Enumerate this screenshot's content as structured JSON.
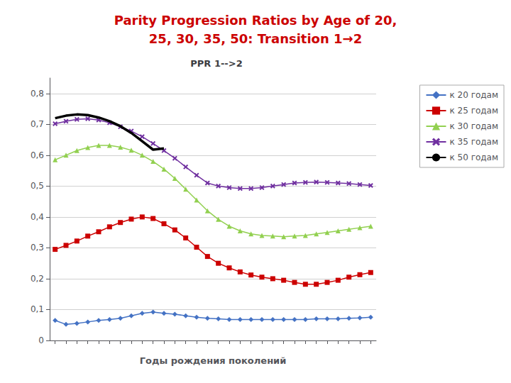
{
  "chart_data": {
    "type": "line",
    "title": "Parity Progression Ratios by Age of 20,\n25, 30, 35, 50: Transition 1→2",
    "subtitle": "PPR 1-->2",
    "xlabel": "Годы рождения поколений",
    "categories": [
      null,
      null,
      null,
      null,
      null,
      null,
      null,
      null,
      null,
      null,
      null,
      null,
      null,
      null,
      null,
      null,
      null,
      null,
      null,
      null,
      null,
      null,
      null,
      null,
      null,
      null,
      null,
      null,
      null,
      null
    ],
    "ylim": [
      0,
      0.85
    ],
    "yticks": [
      0,
      {
        "value": 0.1,
        "label": "0,1"
      },
      {
        "value": 0.2,
        "label": "0,2"
      },
      {
        "value": 0.3,
        "label": "0,3"
      },
      {
        "value": 0.4,
        "label": "0,4"
      },
      {
        "value": 0.5,
        "label": "0,5"
      },
      {
        "value": 0.6,
        "label": "0,6"
      },
      {
        "value": 0.7,
        "label": "0,7"
      },
      {
        "value": 0.8,
        "label": "0,8"
      }
    ],
    "grid": true,
    "legend": "right",
    "tick_labels": "y",
    "series": [
      {
        "name": "к 20 годам",
        "color": "#4472C4",
        "marker": "diamond",
        "values": [
          0.065,
          0.052,
          0.055,
          0.06,
          0.065,
          0.068,
          0.072,
          0.08,
          0.088,
          0.092,
          0.088,
          0.085,
          0.08,
          0.075,
          0.072,
          0.07,
          0.068,
          0.068,
          0.068,
          0.068,
          0.068,
          0.068,
          0.068,
          0.068,
          0.07,
          0.07,
          0.07,
          0.072,
          0.073,
          0.075
        ]
      },
      {
        "name": "к 25 годам",
        "color": "#CC0000",
        "marker": "square",
        "values": [
          0.295,
          0.308,
          0.322,
          0.338,
          0.352,
          0.368,
          0.382,
          0.393,
          0.4,
          0.395,
          0.378,
          0.358,
          0.332,
          0.302,
          0.272,
          0.25,
          0.235,
          0.222,
          0.212,
          0.205,
          0.2,
          0.195,
          0.188,
          0.182,
          0.182,
          0.188,
          0.195,
          0.205,
          0.213,
          0.22
        ]
      },
      {
        "name": "к 30 годам",
        "color": "#92D050",
        "marker": "triangle",
        "values": [
          0.585,
          0.6,
          0.615,
          0.625,
          0.632,
          0.632,
          0.626,
          0.616,
          0.6,
          0.58,
          0.555,
          0.525,
          0.49,
          0.455,
          0.42,
          0.392,
          0.37,
          0.355,
          0.345,
          0.34,
          0.338,
          0.336,
          0.338,
          0.34,
          0.345,
          0.35,
          0.355,
          0.36,
          0.365,
          0.37
        ]
      },
      {
        "name": "к 35 годам",
        "color": "#7030A0",
        "marker": "x",
        "values": [
          0.702,
          0.71,
          0.716,
          0.718,
          0.714,
          0.705,
          0.692,
          0.678,
          0.66,
          0.638,
          0.615,
          0.59,
          0.562,
          0.535,
          0.51,
          0.5,
          0.495,
          0.492,
          0.492,
          0.495,
          0.5,
          0.505,
          0.51,
          0.512,
          0.513,
          0.512,
          0.51,
          0.508,
          0.505,
          0.502
        ]
      },
      {
        "name": "к 50 годам",
        "color": "#000000",
        "marker": "none",
        "values": [
          0.72,
          0.728,
          0.732,
          0.73,
          0.722,
          0.71,
          0.694,
          0.672,
          0.645,
          0.618,
          0.622,
          null,
          null,
          null,
          null,
          null,
          null,
          null,
          null,
          null,
          null,
          null,
          null,
          null,
          null,
          null,
          null,
          null,
          null,
          null
        ]
      }
    ]
  }
}
